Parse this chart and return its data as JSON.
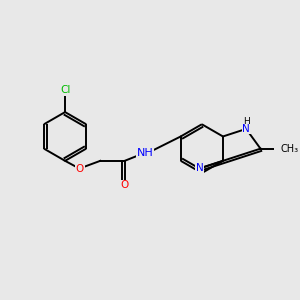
{
  "background_color": "#e8e8e8",
  "bond_color": "#000000",
  "cl_color": "#00bb00",
  "o_color": "#ff0000",
  "n_color": "#0000ff",
  "figsize": [
    3.0,
    3.0
  ],
  "dpi": 100,
  "lw": 1.4,
  "fs": 7.5,
  "xlim": [
    0,
    10
  ],
  "ylim": [
    0,
    10
  ]
}
